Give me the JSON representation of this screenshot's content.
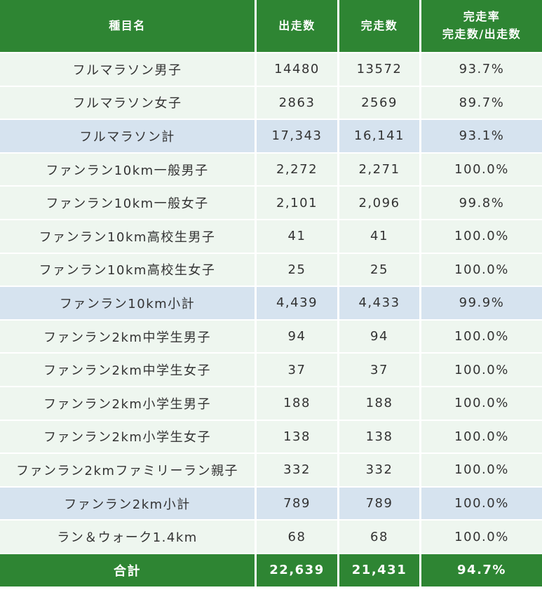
{
  "header": {
    "category": "種目名",
    "entries": "出走数",
    "finishers": "完走数",
    "rate_line1": "完走率",
    "rate_line2": "完走数/出走数"
  },
  "rows": [
    {
      "name": "フルマラソン男子",
      "entries": "14480",
      "finishers": "13572",
      "rate": "93.7%",
      "type": "normal"
    },
    {
      "name": "フルマラソン女子",
      "entries": "2863",
      "finishers": "2569",
      "rate": "89.7%",
      "type": "normal"
    },
    {
      "name": "フルマラソン計",
      "entries": "17,343",
      "finishers": "16,141",
      "rate": "93.1%",
      "type": "subtotal"
    },
    {
      "name": "ファンラン10km一般男子",
      "entries": "2,272",
      "finishers": "2,271",
      "rate": "100.0%",
      "type": "normal"
    },
    {
      "name": "ファンラン10km一般女子",
      "entries": "2,101",
      "finishers": "2,096",
      "rate": "99.8%",
      "type": "normal"
    },
    {
      "name": "ファンラン10km高校生男子",
      "entries": "41",
      "finishers": "41",
      "rate": "100.0%",
      "type": "normal"
    },
    {
      "name": "ファンラン10km高校生女子",
      "entries": "25",
      "finishers": "25",
      "rate": "100.0%",
      "type": "normal"
    },
    {
      "name": "ファンラン10km小計",
      "entries": "4,439",
      "finishers": "4,433",
      "rate": "99.9%",
      "type": "subtotal"
    },
    {
      "name": "ファンラン2km中学生男子",
      "entries": "94",
      "finishers": "94",
      "rate": "100.0%",
      "type": "normal"
    },
    {
      "name": "ファンラン2km中学生女子",
      "entries": "37",
      "finishers": "37",
      "rate": "100.0%",
      "type": "normal"
    },
    {
      "name": "ファンラン2km小学生男子",
      "entries": "188",
      "finishers": "188",
      "rate": "100.0%",
      "type": "normal"
    },
    {
      "name": "ファンラン2km小学生女子",
      "entries": "138",
      "finishers": "138",
      "rate": "100.0%",
      "type": "normal"
    },
    {
      "name": "ファンラン2kmファミリーラン親子",
      "entries": "332",
      "finishers": "332",
      "rate": "100.0%",
      "type": "normal"
    },
    {
      "name": "ファンラン2km小計",
      "entries": "789",
      "finishers": "789",
      "rate": "100.0%",
      "type": "subtotal"
    },
    {
      "name": "ラン＆ウォーク1.4km",
      "entries": "68",
      "finishers": "68",
      "rate": "100.0%",
      "type": "normal"
    }
  ],
  "total": {
    "name": "合計",
    "entries": "22,639",
    "finishers": "21,431",
    "rate": "94.7%"
  },
  "colors": {
    "header_green": "#2e8533",
    "row_light_green": "#eef6ef",
    "row_subtotal_blue": "#d6e3ef"
  }
}
